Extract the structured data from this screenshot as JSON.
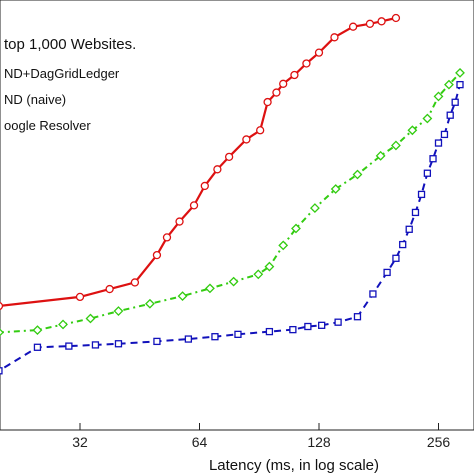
{
  "chart_data": {
    "type": "line",
    "title": "",
    "legend_title": "top 1,000 Websites.",
    "xlabel": "Latency (ms, in log scale)",
    "ylabel": "",
    "x_scale": "log2",
    "xlim": [
      16,
      290
    ],
    "ylim": [
      0,
      1
    ],
    "x_ticks": [
      32,
      64,
      128,
      256
    ],
    "x_tick_labels": [
      "32",
      "64",
      "128",
      "256"
    ],
    "grid": false,
    "legend_position": "top-left",
    "series": [
      {
        "name": "ND+DagGridLedger",
        "color": "#dd1111",
        "line_style": "solid",
        "marker": "circle",
        "x": [
          16,
          20,
          32,
          38,
          44,
          50,
          53,
          57,
          62,
          66,
          71,
          76,
          84,
          91,
          95,
          100,
          104,
          111,
          119,
          128,
          140,
          156,
          172,
          184,
          200
        ],
        "y": [
          0.2525,
          0.2652,
          0.2885,
          0.3085,
          0.3254,
          0.3951,
          0.4403,
          0.4807,
          0.522,
          0.5716,
          0.614,
          0.6458,
          0.6902,
          0.7136,
          0.7855,
          0.8098,
          0.8321,
          0.8545,
          0.884,
          0.9116,
          0.9507,
          0.9778,
          0.9852,
          0.9915,
          1.0
        ]
      },
      {
        "name": "ND (naive)",
        "color": "#33cc11",
        "line_style": "dotted",
        "marker": "diamond",
        "x": [
          16,
          20,
          25,
          29,
          34,
          40,
          48,
          58,
          68,
          78,
          90,
          96,
          104,
          112,
          125,
          141,
          160,
          183,
          200,
          220,
          240,
          256,
          272,
          290
        ],
        "y": [
          0.18,
          0.1979,
          0.2038,
          0.2182,
          0.2334,
          0.2524,
          0.271,
          0.2905,
          0.3103,
          0.3275,
          0.3462,
          0.3658,
          0.42,
          0.463,
          0.5151,
          0.5638,
          0.6008,
          0.6484,
          0.6749,
          0.7136,
          0.7436,
          0.8,
          0.83,
          0.86
        ]
      },
      {
        "name": "oogle Resolver",
        "color": "#1111bb",
        "line_style": "dashed",
        "marker": "square",
        "x": [
          18,
          20,
          25,
          30,
          35,
          40,
          50,
          60,
          70,
          80,
          96,
          110,
          120,
          130,
          143,
          160,
          175,
          190,
          200,
          208,
          216,
          224,
          232,
          240,
          248,
          256,
          265,
          274,
          282,
          290
        ],
        "y": [
          0.04,
          0.1,
          0.16,
          0.163,
          0.166,
          0.169,
          0.175,
          0.181,
          0.187,
          0.193,
          0.2,
          0.205,
          0.213,
          0.216,
          0.224,
          0.238,
          0.296,
          0.351,
          0.387,
          0.422,
          0.461,
          0.504,
          0.55,
          0.604,
          0.641,
          0.681,
          0.703,
          0.752,
          0.785,
          0.83
        ]
      }
    ]
  }
}
